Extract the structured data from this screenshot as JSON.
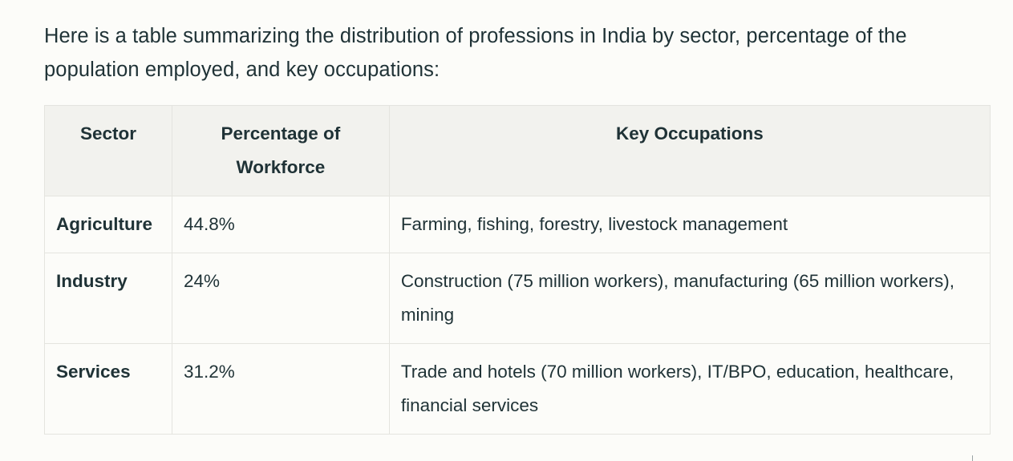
{
  "intro": "Here is a table summarizing the distribution of professions in India by sector, percentage of the population employed, and key occupations:",
  "table": {
    "headers": [
      "Sector",
      "Percentage of Workforce",
      "Key Occupations"
    ],
    "rows": [
      {
        "sector": "Agriculture",
        "percentage": "44.8%",
        "occupations": "Farming, fishing, forestry, livestock management"
      },
      {
        "sector": "Industry",
        "percentage": "24%",
        "occupations": "Construction (75 million workers), manufacturing (65 million workers), mining"
      },
      {
        "sector": "Services",
        "percentage": "31.2%",
        "occupations": "Trade and hotels (70 million workers), IT/BPO, education, healthcare, financial services"
      }
    ]
  }
}
